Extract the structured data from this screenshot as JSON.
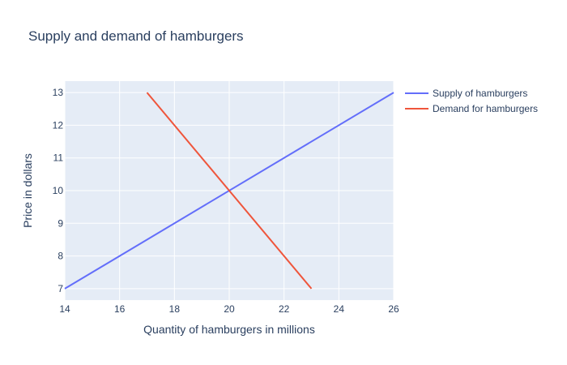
{
  "chart_data": {
    "type": "line",
    "title": "Supply and demand of hamburgers",
    "xlabel": "Quantity of hamburgers in millions",
    "ylabel": "Price in dollars",
    "xlim": [
      14,
      26
    ],
    "ylim": [
      6.65,
      13.35
    ],
    "x_ticks": [
      14,
      16,
      18,
      20,
      22,
      24,
      26
    ],
    "y_ticks": [
      7,
      8,
      9,
      10,
      11,
      12,
      13
    ],
    "grid": true,
    "legend_position": "top-right",
    "plot_background": "#e5ecf6",
    "series": [
      {
        "name": "Supply of hamburgers",
        "color": "#636efa",
        "x": [
          14,
          26
        ],
        "y": [
          7,
          13
        ]
      },
      {
        "name": "Demand for hamburgers",
        "color": "#ef553b",
        "x": [
          17,
          23
        ],
        "y": [
          13,
          7
        ]
      }
    ]
  }
}
